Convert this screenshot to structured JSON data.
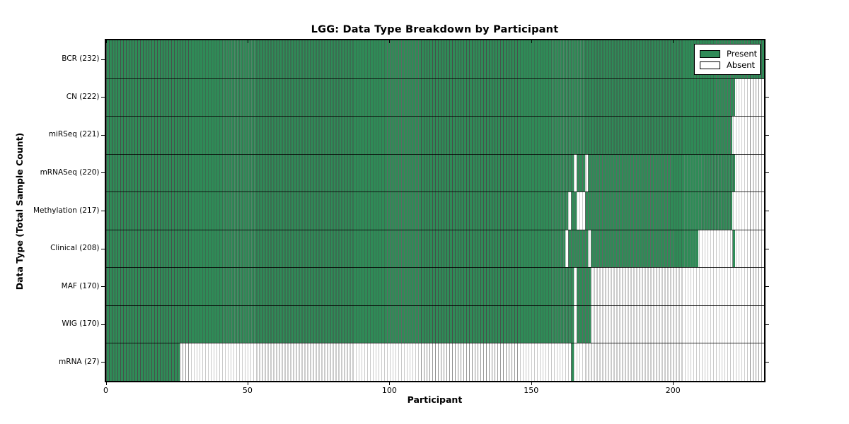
{
  "title": "LGG: Data Type Breakdown by Participant",
  "axes": {
    "xlabel": "Participant",
    "ylabel": "Data Type (Total Sample Count)"
  },
  "legend": {
    "items": [
      {
        "label": "Present",
        "color": "#2f8b57"
      },
      {
        "label": "Absent",
        "color": "#ffffff"
      }
    ]
  },
  "chart_data": {
    "type": "heatmap",
    "title": "LGG: Data Type Breakdown by Participant",
    "xlabel": "Participant",
    "ylabel": "Data Type (Total Sample Count)",
    "x_range": [
      0,
      232
    ],
    "x_ticks": [
      0,
      50,
      100,
      150,
      200
    ],
    "n_participants": 232,
    "grid": false,
    "legend_position": "upper-right",
    "colors": {
      "present": "#2f8b57",
      "absent": "#ffffff",
      "bar_edge": "#000000"
    },
    "rows": [
      {
        "label": "BCR (232)",
        "data_type": "BCR",
        "total": 232,
        "present_ranges": [
          [
            0,
            231
          ]
        ]
      },
      {
        "label": "CN (222)",
        "data_type": "CN",
        "total": 222,
        "present_ranges": [
          [
            0,
            221
          ]
        ]
      },
      {
        "label": "miRSeq (221)",
        "data_type": "miRSeq",
        "total": 221,
        "present_ranges": [
          [
            0,
            220
          ]
        ]
      },
      {
        "label": "mRNASeq (220)",
        "data_type": "mRNASeq",
        "total": 220,
        "present_ranges": [
          [
            0,
            164
          ],
          [
            166,
            168
          ],
          [
            170,
            221
          ]
        ]
      },
      {
        "label": "Methylation (217)",
        "data_type": "Methylation",
        "total": 217,
        "present_ranges": [
          [
            0,
            162
          ],
          [
            164,
            165
          ],
          [
            169,
            220
          ]
        ]
      },
      {
        "label": "Clinical (208)",
        "data_type": "Clinical",
        "total": 208,
        "present_ranges": [
          [
            0,
            161
          ],
          [
            163,
            169
          ],
          [
            171,
            208
          ],
          [
            221,
            221
          ]
        ]
      },
      {
        "label": "MAF (170)",
        "data_type": "MAF",
        "total": 170,
        "present_ranges": [
          [
            0,
            164
          ],
          [
            166,
            170
          ]
        ]
      },
      {
        "label": "WIG (170)",
        "data_type": "WIG",
        "total": 170,
        "present_ranges": [
          [
            0,
            164
          ],
          [
            166,
            170
          ]
        ]
      },
      {
        "label": "mRNA (27)",
        "data_type": "mRNA",
        "total": 27,
        "present_ranges": [
          [
            0,
            25
          ],
          [
            164,
            164
          ]
        ]
      }
    ]
  }
}
